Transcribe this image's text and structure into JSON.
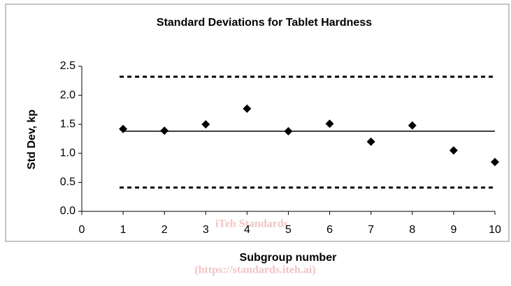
{
  "chart_data": {
    "type": "scatter",
    "title": "Standard Deviations for Tablet Hardness",
    "xlabel": "Subgroup number",
    "ylabel": "Std Dev, kp",
    "x": [
      1,
      2,
      3,
      4,
      5,
      6,
      7,
      8,
      9,
      10
    ],
    "values": [
      1.42,
      1.39,
      1.5,
      1.77,
      1.38,
      1.51,
      1.2,
      1.48,
      1.05,
      0.85
    ],
    "color": "#000000",
    "xlim": [
      0,
      10
    ],
    "xticks": [
      0,
      1,
      2,
      3,
      4,
      5,
      6,
      7,
      8,
      9,
      10
    ],
    "ylim": [
      0,
      2.5
    ],
    "yticks": [
      {
        "value": 0,
        "label": "0.0"
      },
      0.5,
      {
        "value": 1,
        "label": "1.0"
      },
      1.5,
      {
        "value": 2,
        "label": "2.0"
      },
      2.5
    ],
    "reference_lines": [
      {
        "value": 2.32,
        "dashed": true
      },
      {
        "value": 1.38,
        "dashed": false
      },
      {
        "value": 0.41,
        "dashed": true
      }
    ],
    "grid": false,
    "watermark": [
      "iTeh Standards",
      "(https://standards.iteh.ai)"
    ]
  }
}
